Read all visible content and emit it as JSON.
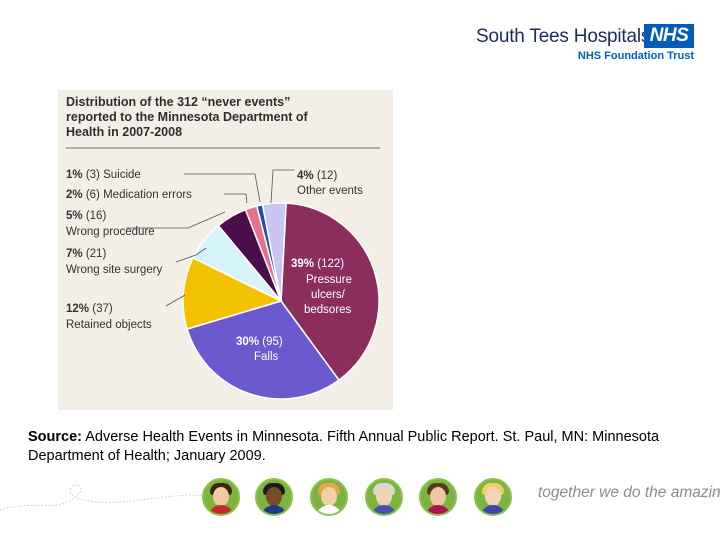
{
  "header": {
    "org_name": "South Tees Hospitals",
    "nhs_badge": "NHS",
    "trust_line": "NHS Foundation Trust"
  },
  "chart_data": {
    "type": "pie",
    "title_lines": [
      "Distribution of the 312 “never events”",
      "reported to the Minnesota Department of",
      "Health in 2007-2008"
    ],
    "total": 312,
    "slices": [
      {
        "name": "Pressure ulcers/ bedsores",
        "percent": "39%",
        "count": "(122)",
        "value": 122,
        "color": "#8b2e5e"
      },
      {
        "name": "Falls",
        "percent": "30%",
        "count": "(95)",
        "value": 95,
        "color": "#6a5acd"
      },
      {
        "name": "Retained objects",
        "percent": "12%",
        "count": "(37)",
        "value": 37,
        "color": "#f2c200"
      },
      {
        "name": "Wrong site surgery",
        "percent": "7%",
        "count": "(21)",
        "value": 21,
        "color": "#d8f4fb"
      },
      {
        "name": "Wrong procedure",
        "percent": "5%",
        "count": "(16)",
        "value": 16,
        "color": "#4a0f4a"
      },
      {
        "name": "Medication errors",
        "percent": "2%",
        "count": "(6)",
        "value": 6,
        "color": "#e8708a"
      },
      {
        "name": "Suicide",
        "percent": "1%",
        "count": "(3)",
        "value": 3,
        "color": "#1f4fa8"
      },
      {
        "name": "Other events",
        "percent": "4%",
        "count": "(12)",
        "value": 12,
        "color": "#c7c7f2"
      }
    ],
    "outer_labels": {
      "suicide": "Suicide",
      "medication": "Medication errors",
      "wrong_procedure": "Wrong procedure",
      "wrong_site": "Wrong site surgery",
      "retained": "Retained objects",
      "other": "Other events"
    },
    "inner_labels": {
      "pressure_lines": [
        "Pressure",
        "ulcers/",
        "bedsores"
      ],
      "falls": "Falls"
    }
  },
  "source": {
    "label": "Source:",
    "text": " Adverse Health Events in Minnesota. Fifth Annual Public Report. St. Paul, MN: Minnesota Department of Health; January 2009."
  },
  "footer": {
    "tagline": "together we do the amazing",
    "avatars": [
      {
        "skin": "#f2c9a0",
        "hair": "#3b2415",
        "shirt": "#c62828"
      },
      {
        "skin": "#7a4a2a",
        "hair": "#1b1b1b",
        "shirt": "#1e3a8a"
      },
      {
        "skin": "#f3cfa8",
        "hair": "#e0a848",
        "shirt": "#ffffff"
      },
      {
        "skin": "#f1d2b6",
        "hair": "#d9d9d9",
        "shirt": "#3f51b5"
      },
      {
        "skin": "#f0c6a4",
        "hair": "#5a3a1e",
        "shirt": "#ad1457"
      },
      {
        "skin": "#f3d3b8",
        "hair": "#f0d060",
        "shirt": "#3949ab"
      }
    ]
  }
}
